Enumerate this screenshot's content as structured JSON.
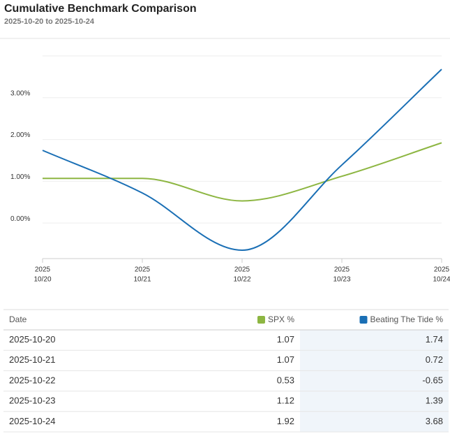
{
  "chart_data": {
    "type": "line",
    "title": "Cumulative Benchmark Comparison",
    "subtitle": "2025-10-20 to 2025-10-24",
    "x": [
      "2025-10-20",
      "2025-10-21",
      "2025-10-22",
      "2025-10-23",
      "2025-10-24"
    ],
    "xtick_labels": [
      [
        "2025",
        "10/20"
      ],
      [
        "2025",
        "10/21"
      ],
      [
        "2025",
        "10/22"
      ],
      [
        "2025",
        "10/23"
      ],
      [
        "2025",
        "10/24"
      ]
    ],
    "series": [
      {
        "name": "SPX %",
        "color": "#8db642",
        "values": [
          1.07,
          1.07,
          0.53,
          1.12,
          1.92
        ]
      },
      {
        "name": "Beating The Tide %",
        "color": "#1a6fb5",
        "values": [
          1.74,
          0.72,
          -0.65,
          1.39,
          3.68
        ]
      }
    ],
    "ylim": [
      -0.85,
      4
    ],
    "yticks": [
      {
        "value": 0,
        "label": "0.00%"
      },
      {
        "value": 1,
        "label": "1.00%"
      },
      {
        "value": 2,
        "label": "2.00%"
      },
      {
        "value": 3,
        "label": "3.00%"
      }
    ],
    "grid": true
  },
  "table": {
    "date_header": "Date"
  }
}
